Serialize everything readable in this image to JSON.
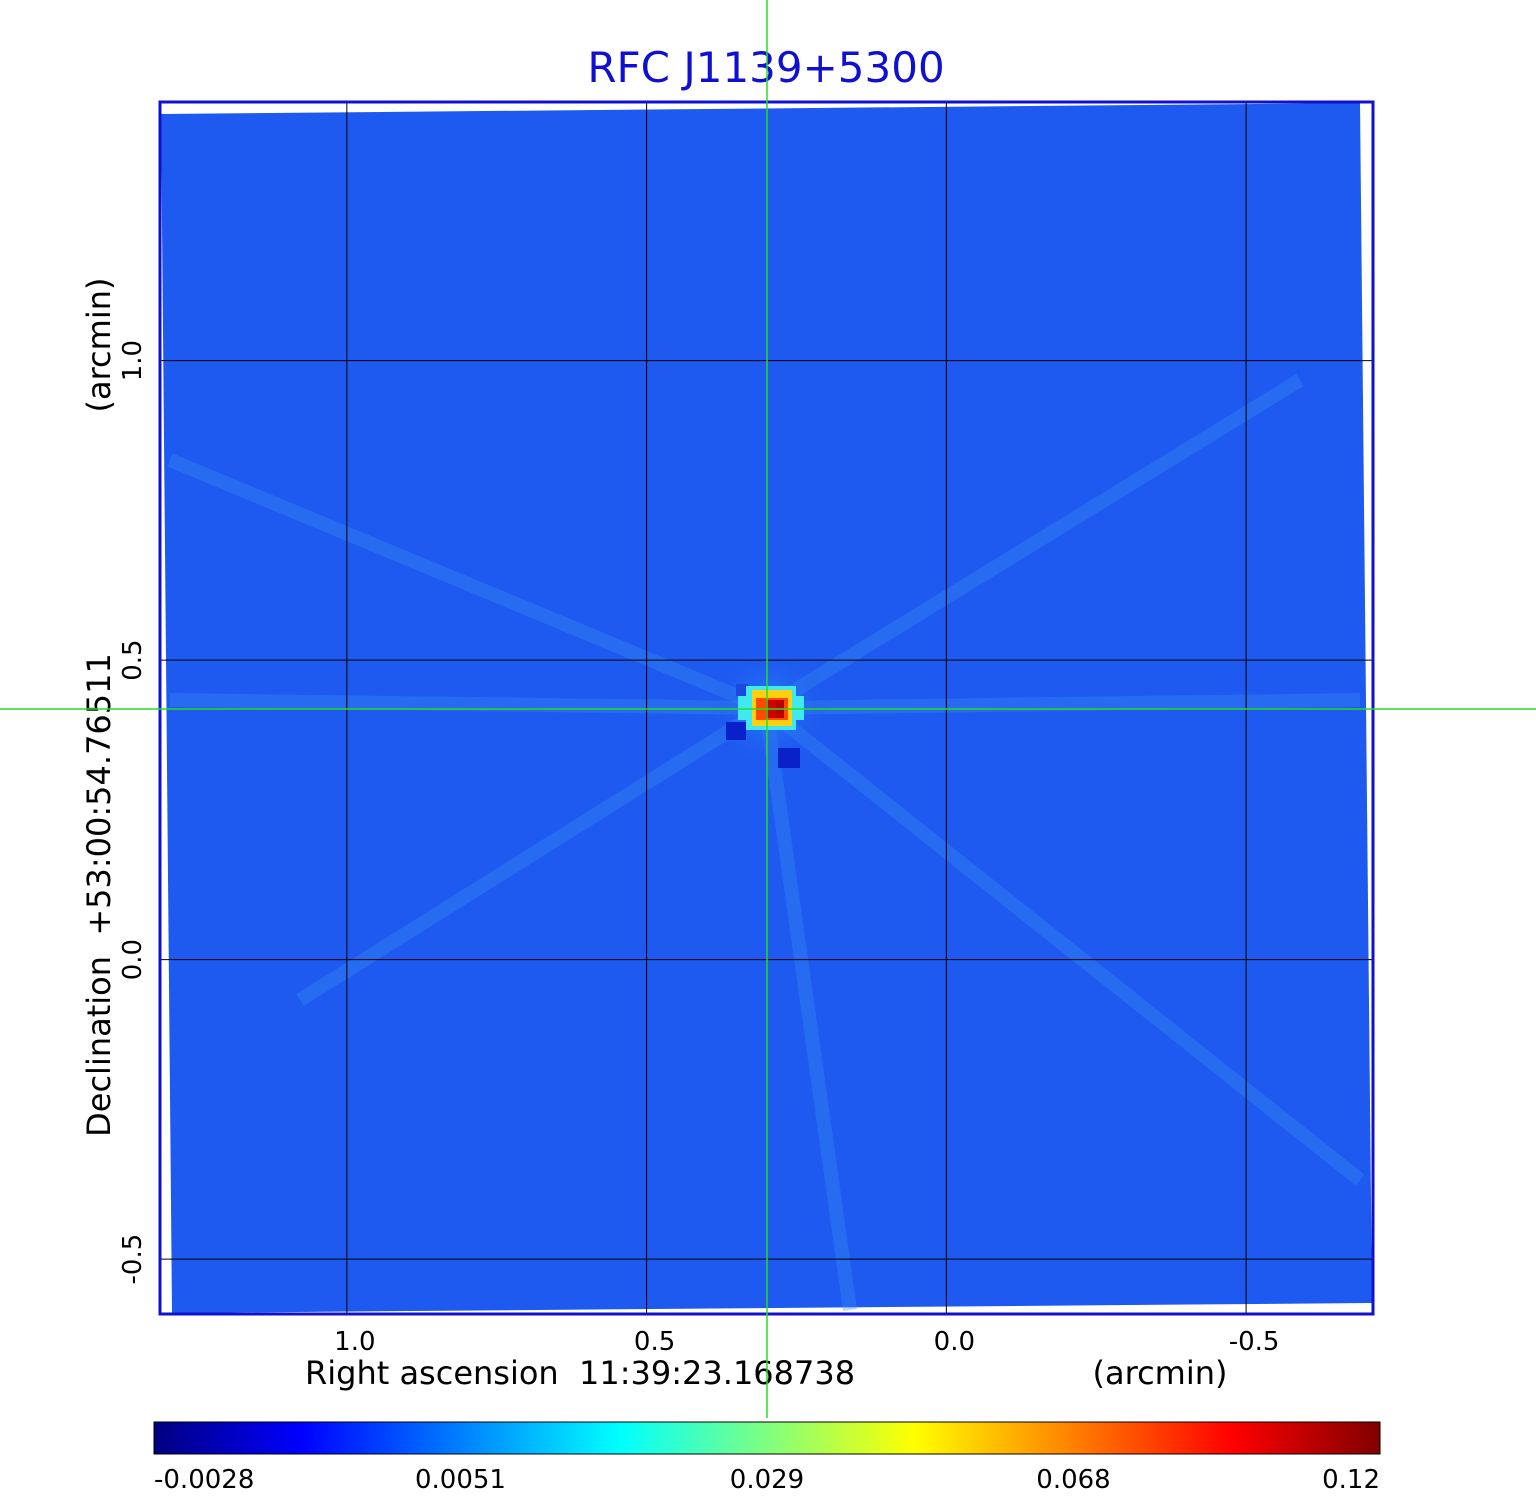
{
  "chart_data": {
    "type": "heatmap",
    "title": "RFC J1139+5300",
    "xlabel": "Right ascension  11:39:23.168738",
    "xunit": "(arcmin)",
    "ylabel": "Declination  +53:00:54.76511",
    "yunit": "(arcmin)",
    "x_ticks": [
      {
        "value": 1.0,
        "label": "1.0"
      },
      {
        "value": 0.5,
        "label": "0.5"
      },
      {
        "value": 0.0,
        "label": "0.0"
      },
      {
        "value": -0.5,
        "label": "-0.5"
      }
    ],
    "y_ticks": [
      {
        "value": 1.0,
        "label": "1.0"
      },
      {
        "value": 0.5,
        "label": "0.5"
      },
      {
        "value": 0.0,
        "label": "0.0"
      },
      {
        "value": -0.5,
        "label": "-0.5"
      }
    ],
    "xlim": [
      1.31,
      -0.71
    ],
    "ylim": [
      -0.59,
      1.43
    ],
    "grid": true,
    "crosshair": {
      "x": 0.3,
      "y": 0.415,
      "color": "#22dd22"
    },
    "peak": {
      "x": 0.3,
      "y": 0.415,
      "value": 0.12
    },
    "colormap": "jet",
    "colorbar": {
      "ticks": [
        {
          "value": -0.0028,
          "label": "-0.0028"
        },
        {
          "value": 0.0051,
          "label": "0.0051"
        },
        {
          "value": 0.029,
          "label": "0.029"
        },
        {
          "value": 0.068,
          "label": "0.068"
        },
        {
          "value": 0.12,
          "label": "0.12"
        }
      ],
      "colors": [
        "#000080",
        "#0000ff",
        "#00ffff",
        "#ffff00",
        "#ff0000",
        "#800000"
      ]
    },
    "colors": {
      "background": "#1e5af0",
      "frame": "#1010d0",
      "grid": "#000000"
    }
  }
}
